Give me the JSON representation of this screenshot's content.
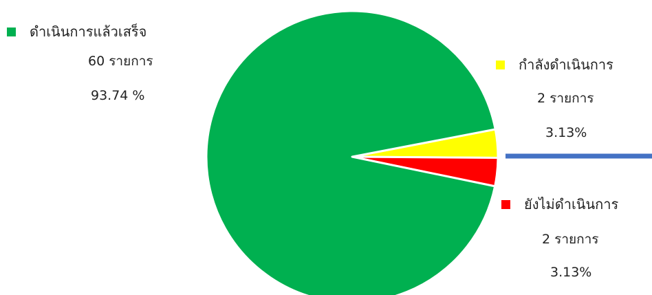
{
  "chart_data": {
    "type": "pie",
    "slices": [
      {
        "label": "ดำเนินการแล้วเสร็จ",
        "count_text": "60 รายการ",
        "percent_text": "93.74 %",
        "value": 93.74,
        "color": "#00b050"
      },
      {
        "label": "กำลังดำเนินการ",
        "count_text": "2 รายการ",
        "percent_text": "3.13%",
        "value": 3.13,
        "color": "#ffff00"
      },
      {
        "label": "ยังไม่ดำเนินการ",
        "count_text": "2 รายการ",
        "percent_text": "3.13%",
        "value": 3.13,
        "color": "#ff0000"
      }
    ],
    "accent_line_color": "#4472c4"
  }
}
